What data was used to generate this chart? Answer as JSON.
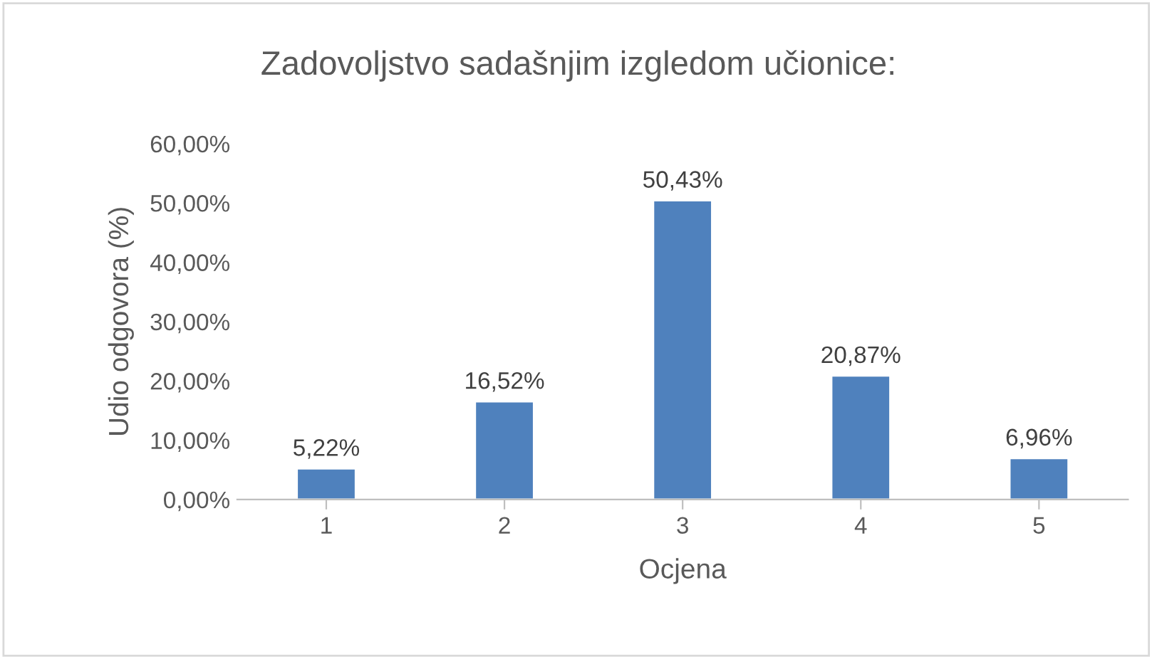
{
  "chart_data": {
    "type": "bar",
    "title": "Zadovoljstvo sadašnjim izgledom učionice:",
    "xlabel": "Ocjena",
    "ylabel": "Udio odgovora (%)",
    "categories": [
      "1",
      "2",
      "3",
      "4",
      "5"
    ],
    "values": [
      5.22,
      16.52,
      50.43,
      20.87,
      6.96
    ],
    "value_labels": [
      "5,22%",
      "16,52%",
      "50,43%",
      "20,87%",
      "6,96%"
    ],
    "color": "#4f81bd",
    "ylim": [
      0,
      60
    ],
    "yticks": [
      {
        "value": 0,
        "label": "0,00%"
      },
      {
        "value": 10,
        "label": "10,00%"
      },
      {
        "value": 20,
        "label": "20,00%"
      },
      {
        "value": 30,
        "label": "30,00%"
      },
      {
        "value": 40,
        "label": "40,00%"
      },
      {
        "value": 50,
        "label": "50,00%"
      },
      {
        "value": 60,
        "label": "60,00%"
      }
    ],
    "grid": false
  }
}
